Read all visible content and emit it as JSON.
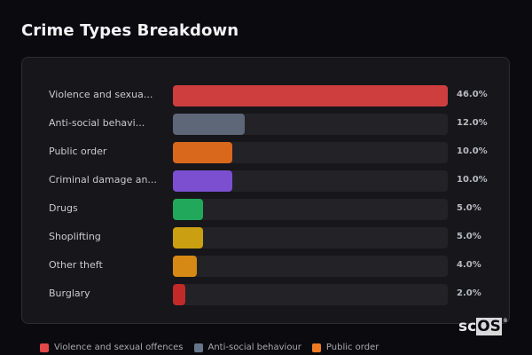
{
  "title": "Crime Types Breakdown",
  "rows": [
    {
      "label": "Violence and sexua...",
      "value": "46.0%",
      "pct": 46.0,
      "color": "#cf3e3e"
    },
    {
      "label": "Anti-social behavi...",
      "value": "12.0%",
      "pct": 12.0,
      "color": "#5d6778"
    },
    {
      "label": "Public order",
      "value": "10.0%",
      "pct": 10.0,
      "color": "#d9681c"
    },
    {
      "label": "Criminal damage an...",
      "value": "10.0%",
      "pct": 10.0,
      "color": "#7b4fd0"
    },
    {
      "label": "Drugs",
      "value": "5.0%",
      "pct": 5.0,
      "color": "#22a85a"
    },
    {
      "label": "Shoplifting",
      "value": "5.0%",
      "pct": 5.0,
      "color": "#caa012"
    },
    {
      "label": "Other theft",
      "value": "4.0%",
      "pct": 4.0,
      "color": "#d68914"
    },
    {
      "label": "Burglary",
      "value": "2.0%",
      "pct": 2.0,
      "color": "#c22a2a"
    }
  ],
  "legend": [
    {
      "label": "Violence and sexual offences",
      "color": "#e24848"
    },
    {
      "label": "Anti-social behaviour",
      "color": "#66758c"
    },
    {
      "label": "Public order",
      "color": "#f07a22"
    }
  ],
  "watermark": {
    "part1": "sc",
    "part2": "OS",
    "mark": "®"
  },
  "chart_data": {
    "type": "bar",
    "orientation": "horizontal",
    "title": "Crime Types Breakdown",
    "categories": [
      "Violence and sexual offences",
      "Anti-social behaviour",
      "Public order",
      "Criminal damage and arson",
      "Drugs",
      "Shoplifting",
      "Other theft",
      "Burglary"
    ],
    "display_labels": [
      "Violence and sexua...",
      "Anti-social behavi...",
      "Public order",
      "Criminal damage an...",
      "Drugs",
      "Shoplifting",
      "Other theft",
      "Burglary"
    ],
    "values": [
      46.0,
      12.0,
      10.0,
      10.0,
      5.0,
      5.0,
      4.0,
      2.0
    ],
    "value_labels": [
      "46.0%",
      "12.0%",
      "10.0%",
      "10.0%",
      "5.0%",
      "5.0%",
      "4.0%",
      "2.0%"
    ],
    "colors": [
      "#cf3e3e",
      "#5d6778",
      "#d9681c",
      "#7b4fd0",
      "#22a85a",
      "#caa012",
      "#d68914",
      "#c22a2a"
    ],
    "xlabel": "",
    "ylabel": "",
    "xlim": [
      0,
      46
    ],
    "grid": false,
    "legend": {
      "position": "bottom",
      "entries": [
        "Violence and sexual offences",
        "Anti-social behaviour",
        "Public order"
      ]
    }
  }
}
